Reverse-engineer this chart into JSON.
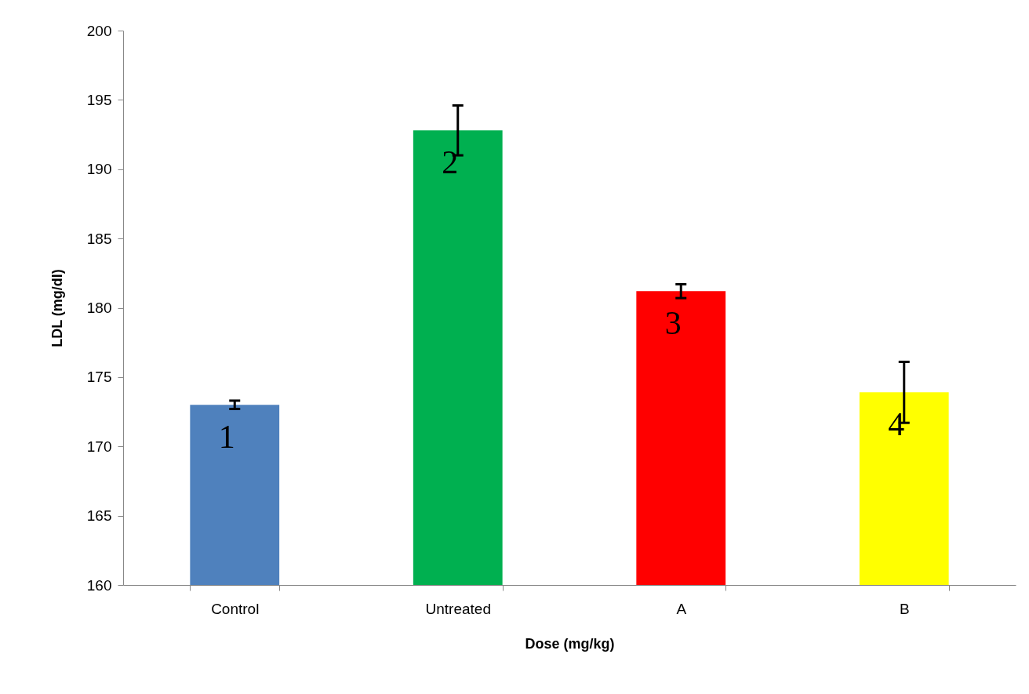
{
  "chart_data": {
    "type": "bar",
    "xlabel": "Dose (mg/kg)",
    "ylabel": "LDL (mg/dl)",
    "categories": [
      "Control",
      "Untreated",
      "A",
      "B"
    ],
    "values": [
      173.0,
      192.8,
      181.2,
      173.9
    ],
    "errors": [
      0.3,
      1.8,
      0.5,
      2.2
    ],
    "colors": [
      "#4f81bd",
      "#00b050",
      "#ff0000",
      "#ffff00"
    ],
    "ylim": [
      160,
      200
    ],
    "yticks": [
      160,
      165,
      170,
      175,
      180,
      185,
      190,
      195,
      200
    ],
    "annotations": [
      "1",
      "2",
      "3",
      "4"
    ]
  }
}
